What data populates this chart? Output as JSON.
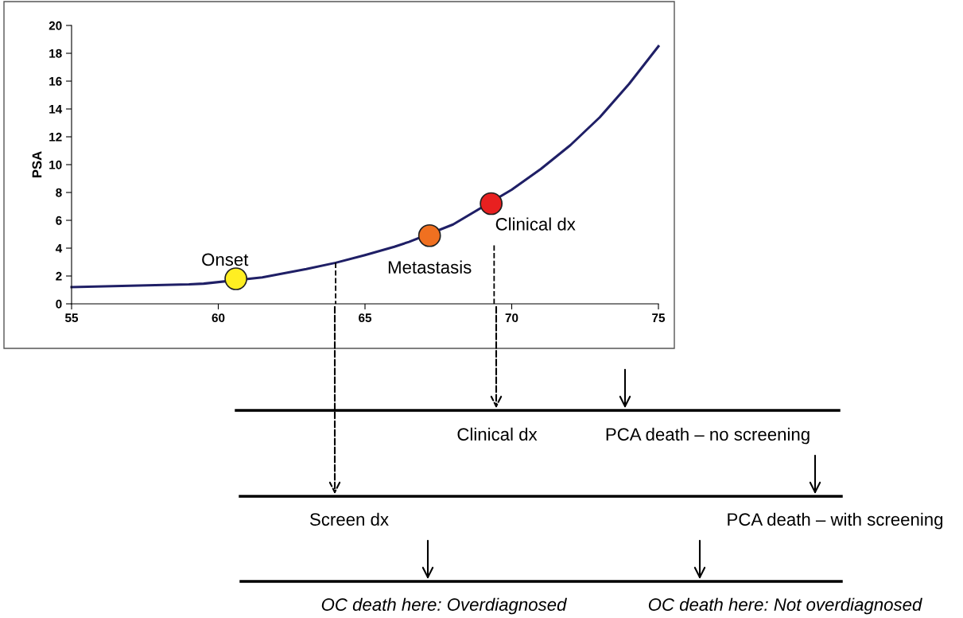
{
  "chart_data": {
    "type": "line",
    "ylabel": "PSA",
    "xlim": [
      55,
      75
    ],
    "ylim": [
      0,
      20
    ],
    "xticks": [
      55,
      60,
      65,
      70,
      75
    ],
    "yticks": [
      0,
      2,
      4,
      6,
      8,
      10,
      12,
      14,
      16,
      18,
      20
    ],
    "grid": false,
    "legend": false,
    "marker": "none",
    "line_style": "solid",
    "series": [
      {
        "color": "#1f1f66",
        "x": [
          55,
          57,
          59,
          59.5,
          61.5,
          62,
          63,
          64,
          65,
          66,
          66.5,
          68,
          70,
          71,
          72,
          73,
          74,
          75
        ],
        "values": [
          1.2,
          1.3,
          1.4,
          1.45,
          1.9,
          2.1,
          2.5,
          2.95,
          3.5,
          4.1,
          4.45,
          5.7,
          8.2,
          9.7,
          11.4,
          13.4,
          15.8,
          18.5
        ]
      },
      {
        "color": "#000000",
        "line_style": "dashed",
        "x": [
          64,
          64
        ],
        "values": [
          2.95,
          0
        ]
      },
      {
        "color": "#000000",
        "line_style": "dashed",
        "x": [
          69.4,
          69.4
        ],
        "values": [
          4.2,
          0
        ]
      },
      {
        "type": "scatter",
        "marker": "circle",
        "x": [
          60.6,
          67.2,
          69.3
        ],
        "values": [
          1.8,
          4.9,
          7.2
        ],
        "colors": [
          "#ffee22",
          "#f07020",
          "#e82020"
        ]
      }
    ],
    "annotations": [
      {
        "text": "Onset",
        "x": 60.6,
        "y": 1.8
      },
      {
        "text": "Metastasis",
        "x": 67.2,
        "y": 4.9
      },
      {
        "text": "Clinical dx",
        "x": 69.3,
        "y": 7.2
      },
      "Clinical dx",
      "PCA death – no screening",
      "Screen dx",
      "PCA death – with screening",
      "OC death here: Overdiagnosed",
      "OC death here: Not overdiagnosed"
    ]
  }
}
